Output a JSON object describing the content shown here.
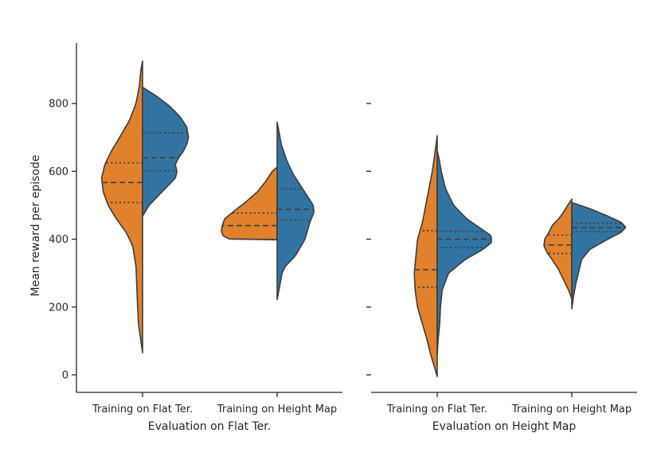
{
  "chart_data": {
    "type": "split-violin",
    "ylabel": "Mean reward per episode",
    "yticks": [
      0,
      200,
      400,
      600,
      800
    ],
    "ylim": [
      -50,
      960
    ],
    "colors": {
      "left": "#e1812c",
      "right": "#3274a1",
      "edge": "#3c3c3c"
    },
    "panels": [
      {
        "xlabel": "Evaluation on Flat Ter.",
        "categories": [
          "Training on Flat Ter.",
          "Training on Height Map"
        ],
        "violins": [
          {
            "category": "Training on Flat Ter.",
            "left": {
              "range": [
                65,
                925
              ],
              "quartiles": [
                508,
                567,
                625
              ],
              "density": [
                [
                  65,
                  0
                ],
                [
                  100,
                  2
                ],
                [
                  150,
                  5
                ],
                [
                  200,
                  6
                ],
                [
                  260,
                  7
                ],
                [
                  320,
                  8
                ],
                [
                  380,
                  12
                ],
                [
                  420,
                  20
                ],
                [
                  460,
                  32
                ],
                [
                  500,
                  42
                ],
                [
                  540,
                  48
                ],
                [
                  580,
                  50
                ],
                [
                  620,
                  46
                ],
                [
                  660,
                  38
                ],
                [
                  700,
                  28
                ],
                [
                  750,
                  16
                ],
                [
                  800,
                  8
                ],
                [
                  850,
                  4
                ],
                [
                  900,
                  2
                ],
                [
                  925,
                  0
                ]
              ]
            },
            "right": {
              "range": [
                468,
                848
              ],
              "quartiles": [
                602,
                640,
                713
              ],
              "density": [
                [
                  468,
                  0
                ],
                [
                  500,
                  8
                ],
                [
                  540,
                  24
                ],
                [
                  580,
                  40
                ],
                [
                  600,
                  42
                ],
                [
                  620,
                  40
                ],
                [
                  640,
                  44
                ],
                [
                  660,
                  50
                ],
                [
                  680,
                  54
                ],
                [
                  700,
                  56
                ],
                [
                  730,
                  54
                ],
                [
                  760,
                  46
                ],
                [
                  790,
                  34
                ],
                [
                  820,
                  18
                ],
                [
                  848,
                  0
                ]
              ]
            }
          },
          {
            "category": "Training on Height Map",
            "left": {
              "range": [
                398,
                612
              ],
              "quartiles": [
                400,
                440,
                477
              ],
              "density": [
                [
                  398,
                  0
                ],
                [
                  400,
                  58
                ],
                [
                  410,
                  66
                ],
                [
                  425,
                  68
                ],
                [
                  440,
                  67
                ],
                [
                  460,
                  64
                ],
                [
                  480,
                  54
                ],
                [
                  510,
                  38
                ],
                [
                  540,
                  24
                ],
                [
                  570,
                  14
                ],
                [
                  600,
                  6
                ],
                [
                  612,
                  0
                ]
              ]
            },
            "right": {
              "range": [
                222,
                745
              ],
              "quartiles": [
                456,
                488,
                548
              ],
              "density": [
                [
                  222,
                  0
                ],
                [
                  260,
                  3
                ],
                [
                  300,
                  6
                ],
                [
                  320,
                  10
                ],
                [
                  350,
                  22
                ],
                [
                  400,
                  34
                ],
                [
                  450,
                  40
                ],
                [
                  480,
                  45
                ],
                [
                  500,
                  44
                ],
                [
                  530,
                  36
                ],
                [
                  560,
                  28
                ],
                [
                  590,
                  20
                ],
                [
                  630,
                  12
                ],
                [
                  680,
                  5
                ],
                [
                  720,
                  2
                ],
                [
                  745,
                  0
                ]
              ]
            }
          }
        ]
      },
      {
        "xlabel": "Evaluation on Height Map",
        "categories": [
          "Training on Flat Ter.",
          "Training on Height Map"
        ],
        "violins": [
          {
            "category": "Training on Flat Ter.",
            "left": {
              "range": [
                -5,
                705
              ],
              "quartiles": [
                258,
                310,
                425
              ],
              "density": [
                [
                  -5,
                  0
                ],
                [
                  20,
                  3
                ],
                [
                  60,
                  8
                ],
                [
                  100,
                  12
                ],
                [
                  150,
                  18
                ],
                [
                  200,
                  24
                ],
                [
                  250,
                  27
                ],
                [
                  300,
                  28
                ],
                [
                  350,
                  26
                ],
                [
                  400,
                  24
                ],
                [
                  450,
                  18
                ],
                [
                  500,
                  14
                ],
                [
                  550,
                  10
                ],
                [
                  600,
                  6
                ],
                [
                  650,
                  3
                ],
                [
                  705,
                  0
                ]
              ]
            },
            "right": {
              "range": [
                60,
                660
              ],
              "quartiles": [
                375,
                400,
                422
              ],
              "density": [
                [
                  60,
                  0
                ],
                [
                  100,
                  1
                ],
                [
                  150,
                  3
                ],
                [
                  200,
                  4
                ],
                [
                  250,
                  6
                ],
                [
                  300,
                  14
                ],
                [
                  340,
                  34
                ],
                [
                  370,
                  56
                ],
                [
                  390,
                  66
                ],
                [
                  410,
                  66
                ],
                [
                  430,
                  54
                ],
                [
                  460,
                  36
                ],
                [
                  500,
                  20
                ],
                [
                  550,
                  10
                ],
                [
                  600,
                  5
                ],
                [
                  640,
                  2
                ],
                [
                  660,
                  0
                ]
              ]
            }
          },
          {
            "category": "Training on Height Map",
            "left": {
              "range": [
                225,
                518
              ],
              "quartiles": [
                358,
                383,
                412
              ],
              "density": [
                [
                  225,
                  0
                ],
                [
                  250,
                  4
                ],
                [
                  280,
                  10
                ],
                [
                  310,
                  16
                ],
                [
                  340,
                  24
                ],
                [
                  360,
                  30
                ],
                [
                  380,
                  34
                ],
                [
                  400,
                  33
                ],
                [
                  420,
                  28
                ],
                [
                  440,
                  24
                ],
                [
                  460,
                  16
                ],
                [
                  480,
                  10
                ],
                [
                  500,
                  5
                ],
                [
                  518,
                  0
                ]
              ]
            },
            "right": {
              "range": [
                195,
                508
              ],
              "quartiles": [
                422,
                434,
                447
              ],
              "density": [
                [
                  195,
                  0
                ],
                [
                  230,
                  2
                ],
                [
                  270,
                  5
                ],
                [
                  300,
                  8
                ],
                [
                  340,
                  12
                ],
                [
                  370,
                  22
                ],
                [
                  400,
                  44
                ],
                [
                  420,
                  60
                ],
                [
                  435,
                  66
                ],
                [
                  450,
                  60
                ],
                [
                  470,
                  42
                ],
                [
                  490,
                  22
                ],
                [
                  508,
                  0
                ]
              ]
            }
          }
        ]
      }
    ]
  }
}
